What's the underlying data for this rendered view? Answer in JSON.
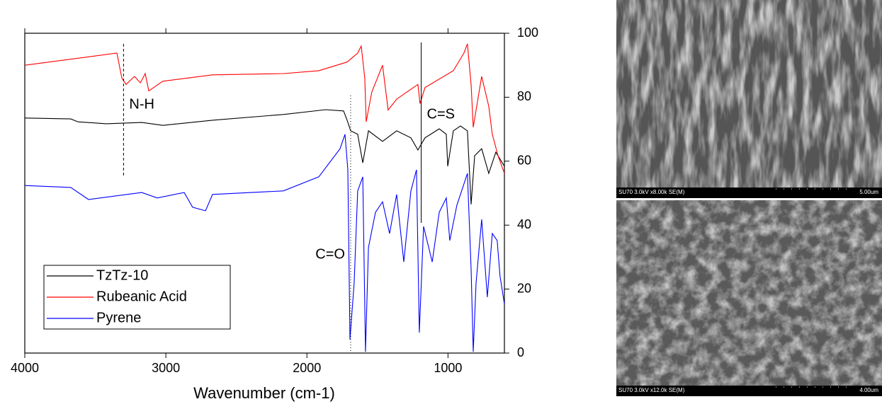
{
  "chart_data": {
    "type": "line",
    "xlabel": "Wavenumber (cm-1)",
    "xlim": [
      4000,
      600
    ],
    "ylim": [
      0,
      100
    ],
    "xticks": [
      4000,
      3000,
      2000,
      1000
    ],
    "yticks": [
      0,
      20,
      40,
      60,
      80,
      100
    ],
    "legend": "lower left",
    "annotations": [
      {
        "text": "N-H",
        "x": 3300
      },
      {
        "text": "C=O",
        "x": 1690
      },
      {
        "text": "C=S",
        "x": 1190
      }
    ],
    "series": [
      {
        "name": "TzTz-10",
        "color": "#000000",
        "x": [
          4000,
          3674,
          3623,
          3422,
          3171,
          3021,
          2669,
          2167,
          1866,
          1740,
          1715,
          1690,
          1640,
          1604,
          1564,
          1464,
          1364,
          1263,
          1213,
          1163,
          1062,
          1012,
          1002,
          962,
          912,
          862,
          836,
          811,
          761,
          711,
          661,
          600
        ],
        "values": [
          73.5,
          73.2,
          72.3,
          71.7,
          72.1,
          71.2,
          72.8,
          74.6,
          76.1,
          75.7,
          72.8,
          69.5,
          68.4,
          59.5,
          69.5,
          66.2,
          69.5,
          67.3,
          63.5,
          67.3,
          70.1,
          68.4,
          58.4,
          69.5,
          71,
          69.5,
          46.5,
          61.7,
          63.9,
          56.2,
          62.8,
          58.4
        ]
      },
      {
        "name": "Rubeanic Acid",
        "color": "#ff0000",
        "x": [
          4000,
          3347,
          3312,
          3282,
          3222,
          3181,
          3146,
          3121,
          3021,
          2669,
          2167,
          1916,
          1715,
          1640,
          1615,
          1590,
          1580,
          1540,
          1464,
          1424,
          1364,
          1213,
          1198,
          1163,
          962,
          887,
          862,
          836,
          821,
          761,
          711,
          686,
          645,
          600
        ],
        "values": [
          90,
          93.8,
          86,
          84,
          86.5,
          84.5,
          87.4,
          82,
          85,
          87,
          87.4,
          88.3,
          91,
          93.8,
          96,
          86,
          72.3,
          81.6,
          90,
          76,
          79.4,
          84,
          78,
          83,
          88.3,
          93.8,
          96.7,
          84,
          70.6,
          86.5,
          77.2,
          68.4,
          61.7,
          56.2
        ]
      },
      {
        "name": "Pyrene",
        "color": "#0000ff",
        "x": [
          4000,
          3674,
          3548,
          3171,
          3061,
          2870,
          2810,
          2719,
          2669,
          2167,
          1916,
          1765,
          1730,
          1710,
          1695,
          1665,
          1640,
          1604,
          1585,
          1564,
          1514,
          1464,
          1414,
          1364,
          1313,
          1263,
          1223,
          1203,
          1173,
          1112,
          1062,
          1012,
          987,
          937,
          862,
          836,
          821,
          801,
          761,
          721,
          686,
          651,
          631,
          600
        ],
        "values": [
          52.4,
          51.8,
          48,
          50.2,
          48.5,
          50.2,
          45.6,
          44.5,
          49.6,
          50.7,
          55.1,
          63.9,
          68.4,
          57.3,
          4.2,
          21.9,
          50.7,
          55.1,
          0.4,
          33,
          44,
          47.3,
          37.4,
          49.6,
          28.5,
          50.7,
          57.3,
          6.4,
          39.6,
          28.5,
          44,
          48.5,
          35.2,
          46.2,
          56.2,
          26.3,
          0.4,
          21.9,
          41.8,
          17.5,
          37.4,
          35.2,
          24.1,
          15.3
        ]
      }
    ]
  },
  "images": [
    {
      "caption": "SU70 3.0kV x8.00k SE(M)",
      "scale": "5.00um"
    },
    {
      "caption": "SU70 3.0kV x12.0k SE(M)",
      "scale": "4.00um"
    }
  ]
}
